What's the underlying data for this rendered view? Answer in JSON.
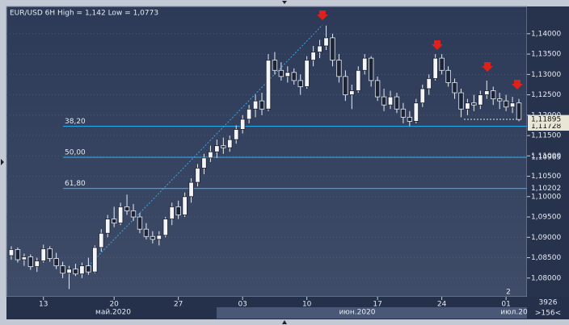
{
  "chart_data": {
    "type": "candlestick",
    "title": "EUR/USD 6H High = 1,142 Low = 1,0773",
    "categories": [
      null,
      null,
      null,
      null,
      null,
      "13",
      null,
      null,
      null,
      null,
      null,
      null,
      null,
      null,
      null,
      null,
      "20",
      null,
      null,
      null,
      null,
      null,
      null,
      null,
      null,
      null,
      "27",
      null,
      null,
      null,
      null,
      null,
      null,
      null,
      null,
      null,
      "03",
      null,
      null,
      null,
      null,
      null,
      null,
      null,
      null,
      null,
      "10",
      null,
      null,
      null,
      null,
      null,
      null,
      null,
      null,
      null,
      null,
      "17",
      null,
      null,
      null,
      null,
      null,
      null,
      null,
      null,
      null,
      "24",
      null,
      null,
      null,
      null,
      null,
      null,
      null,
      null,
      null,
      "01",
      null,
      null
    ],
    "open": [
      1.0855,
      1.087,
      1.0845,
      1.0852,
      1.0828,
      1.0842,
      1.0872,
      1.0848,
      1.083,
      1.0812,
      1.0822,
      1.081,
      1.083,
      1.0815,
      1.0875,
      1.091,
      1.0945,
      1.0935,
      1.0975,
      1.0965,
      1.095,
      1.092,
      1.0902,
      1.0895,
      1.0905,
      1.0945,
      1.0975,
      1.0955,
      1.1,
      1.1035,
      1.107,
      1.1095,
      1.111,
      1.1125,
      1.112,
      1.114,
      1.1165,
      1.119,
      1.1215,
      1.1235,
      1.1215,
      1.1335,
      1.131,
      1.1295,
      1.1305,
      1.1285,
      1.127,
      1.1335,
      1.1355,
      1.137,
      1.139,
      1.1335,
      1.1295,
      1.125,
      1.126,
      1.131,
      1.134,
      1.1285,
      1.1245,
      1.1225,
      1.1245,
      1.1215,
      1.1195,
      1.1185,
      1.123,
      1.1265,
      1.129,
      1.134,
      1.131,
      1.128,
      1.1255,
      1.1215,
      1.123,
      1.1225,
      1.125,
      1.126,
      1.124,
      1.1235,
      1.122,
      1.123
    ],
    "high": [
      1.0878,
      1.0875,
      1.086,
      1.0858,
      1.085,
      1.0882,
      1.0878,
      1.0862,
      1.084,
      1.083,
      1.0835,
      1.0838,
      1.085,
      1.088,
      1.092,
      1.0955,
      1.0975,
      1.0985,
      1.1005,
      1.0982,
      1.096,
      1.0935,
      1.0915,
      1.0915,
      1.095,
      1.0985,
      1.099,
      1.101,
      1.1045,
      1.108,
      1.1105,
      1.1125,
      1.114,
      1.1145,
      1.115,
      1.1175,
      1.12,
      1.1225,
      1.125,
      1.1255,
      1.135,
      1.1355,
      1.133,
      1.132,
      1.1315,
      1.13,
      1.1345,
      1.137,
      1.1385,
      1.142,
      1.14,
      1.135,
      1.131,
      1.1275,
      1.132,
      1.135,
      1.1345,
      1.1295,
      1.1265,
      1.126,
      1.1255,
      1.123,
      1.121,
      1.124,
      1.1275,
      1.13,
      1.135,
      1.135,
      1.132,
      1.129,
      1.1265,
      1.124,
      1.125,
      1.126,
      1.1285,
      1.127,
      1.1255,
      1.125,
      1.1245,
      1.124
    ],
    "low": [
      1.0845,
      1.0838,
      1.083,
      1.082,
      1.0815,
      1.0838,
      1.084,
      1.0822,
      1.08,
      1.0773,
      1.0805,
      1.08,
      1.0808,
      1.0812,
      1.0865,
      1.09,
      1.0925,
      1.093,
      1.0955,
      1.094,
      1.091,
      1.0895,
      1.0885,
      1.088,
      1.09,
      1.093,
      1.0945,
      1.095,
      1.0985,
      1.1025,
      1.1055,
      1.1085,
      1.1095,
      1.1105,
      1.111,
      1.113,
      1.1155,
      1.118,
      1.1195,
      1.12,
      1.121,
      1.13,
      1.1285,
      1.128,
      1.1275,
      1.125,
      1.1265,
      1.132,
      1.134,
      1.136,
      1.132,
      1.128,
      1.1235,
      1.1215,
      1.1255,
      1.13,
      1.127,
      1.1235,
      1.121,
      1.1215,
      1.1205,
      1.118,
      1.1173,
      1.118,
      1.122,
      1.125,
      1.1285,
      1.13,
      1.127,
      1.124,
      1.1195,
      1.12,
      1.121,
      1.1215,
      1.124,
      1.1225,
      1.1215,
      1.121,
      1.1205,
      1.1185
    ],
    "close": [
      1.087,
      1.0845,
      1.0852,
      1.0828,
      1.0842,
      1.0872,
      1.0848,
      1.083,
      1.0812,
      1.0822,
      1.081,
      1.083,
      1.0815,
      1.0875,
      1.091,
      1.0945,
      1.0935,
      1.0975,
      1.0965,
      1.095,
      1.092,
      1.0902,
      1.0895,
      1.0905,
      1.0945,
      1.0975,
      1.0955,
      1.1,
      1.1035,
      1.107,
      1.1095,
      1.111,
      1.1125,
      1.112,
      1.114,
      1.1165,
      1.119,
      1.1215,
      1.1235,
      1.1215,
      1.1335,
      1.131,
      1.1295,
      1.1305,
      1.1285,
      1.127,
      1.1335,
      1.1355,
      1.137,
      1.139,
      1.1335,
      1.1295,
      1.125,
      1.126,
      1.131,
      1.134,
      1.1285,
      1.1245,
      1.1225,
      1.1245,
      1.1215,
      1.1195,
      1.1185,
      1.123,
      1.1265,
      1.129,
      1.134,
      1.131,
      1.128,
      1.1255,
      1.1215,
      1.123,
      1.1225,
      1.125,
      1.126,
      1.124,
      1.1235,
      1.122,
      1.123,
      1.11895
    ],
    "ylim": [
      1.0754,
      1.1467
    ],
    "yticks": [
      {
        "value": 1.08,
        "label": "1,08000"
      },
      {
        "value": 1.085,
        "label": "1,08500"
      },
      {
        "value": 1.09,
        "label": "1,09000"
      },
      {
        "value": 1.095,
        "label": "1,09500"
      },
      {
        "value": 1.1,
        "label": "1,10000"
      },
      {
        "value": 1.105,
        "label": "1,10500"
      },
      {
        "value": 1.11,
        "label": "1,11000"
      },
      {
        "value": 1.115,
        "label": "1,11500"
      },
      {
        "value": 1.12,
        "label": "1,12000"
      },
      {
        "value": 1.125,
        "label": "1,12500"
      },
      {
        "value": 1.13,
        "label": "1,13000"
      },
      {
        "value": 1.135,
        "label": "1,13500"
      },
      {
        "value": 1.14,
        "label": "1,14000"
      }
    ],
    "fib_levels": {
      "names": [
        "38,20",
        "50,00",
        "61,80"
      ],
      "values": [
        1.11728,
        1.10965,
        1.10202
      ],
      "value_labels": [
        "1,11728",
        "1,10965",
        "1,10202"
      ],
      "color": "#2aa7e8"
    },
    "last_price": {
      "value": 1.11895,
      "label": "1,11895"
    },
    "month_labels": [
      "май.2020",
      "июн.2020",
      "июл.20"
    ],
    "annotation": "2",
    "footer": [
      "3926",
      ">156<"
    ]
  }
}
